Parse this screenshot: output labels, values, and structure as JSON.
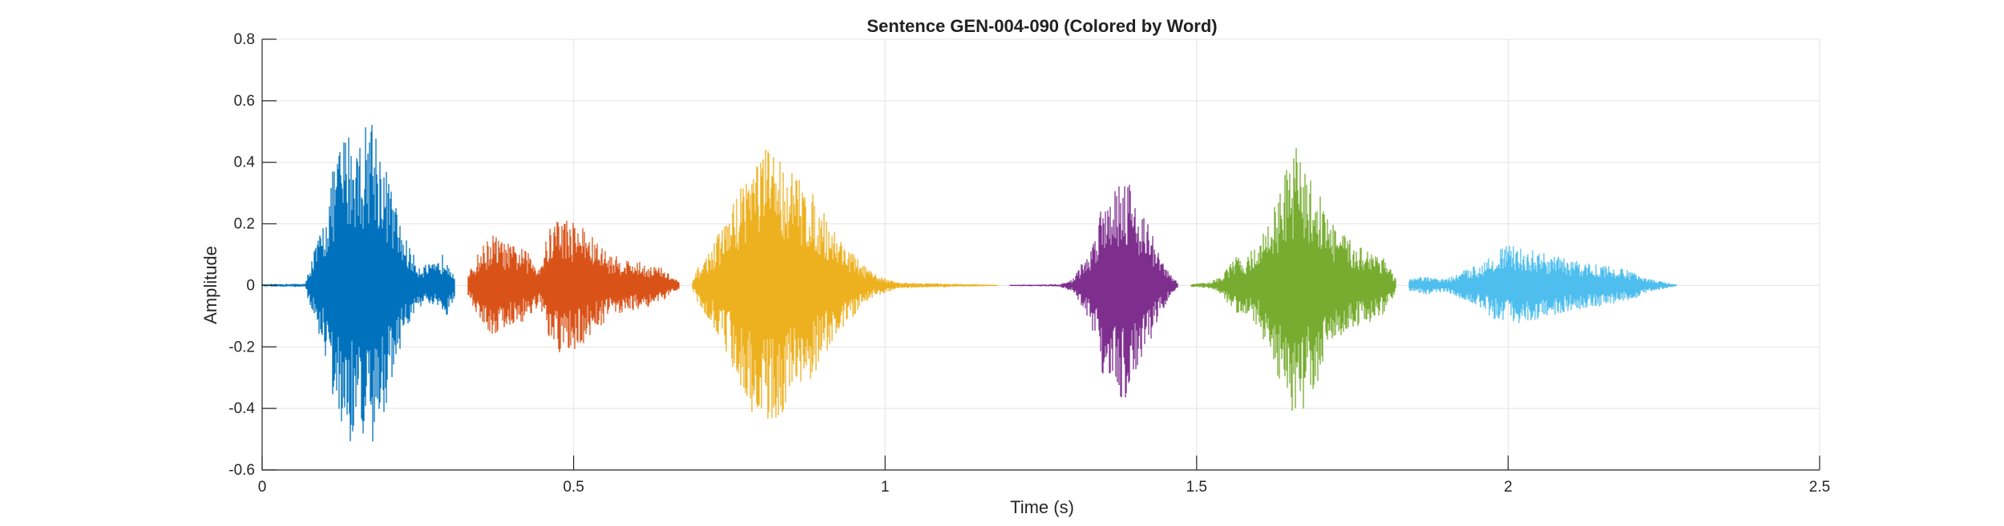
{
  "chart_data": {
    "type": "line",
    "title": "Sentence GEN-004-090 (Colored by Word)",
    "xlabel": "Time (s)",
    "ylabel": "Amplitude",
    "xlim": [
      0,
      2.5
    ],
    "ylim": [
      -0.6,
      0.8
    ],
    "x_ticks": [
      0,
      0.5,
      1,
      1.5,
      2,
      2.5
    ],
    "x_tick_labels": [
      "0",
      "0.5",
      "1",
      "1.5",
      "2",
      "2.5"
    ],
    "y_ticks": [
      -0.6,
      -0.4,
      -0.2,
      0,
      0.2,
      0.4,
      0.6,
      0.8
    ],
    "y_tick_labels": [
      "-0.6",
      "-0.4",
      "-0.2",
      "0",
      "0.2",
      "0.4",
      "0.6",
      "0.8"
    ],
    "grid": true,
    "legend": "none",
    "series": [
      {
        "color": "#0072BD",
        "t_start": 0.0,
        "t_end": 0.31,
        "envelope": [
          [
            0.0,
            0.004
          ],
          [
            0.07,
            0.006
          ],
          [
            0.075,
            0.06
          ],
          [
            0.1,
            0.22
          ],
          [
            0.12,
            0.45
          ],
          [
            0.14,
            0.52
          ],
          [
            0.16,
            0.48
          ],
          [
            0.175,
            0.6
          ],
          [
            0.19,
            0.46
          ],
          [
            0.21,
            0.3
          ],
          [
            0.225,
            0.18
          ],
          [
            0.25,
            0.07
          ],
          [
            0.28,
            0.07
          ],
          [
            0.295,
            0.12
          ],
          [
            0.31,
            0.03
          ]
        ]
      },
      {
        "color": "#D95319",
        "t_start": 0.33,
        "t_end": 0.67,
        "envelope": [
          [
            0.33,
            0.03
          ],
          [
            0.35,
            0.12
          ],
          [
            0.37,
            0.17
          ],
          [
            0.39,
            0.14
          ],
          [
            0.42,
            0.12
          ],
          [
            0.445,
            0.07
          ],
          [
            0.46,
            0.18
          ],
          [
            0.475,
            0.24
          ],
          [
            0.49,
            0.22
          ],
          [
            0.51,
            0.21
          ],
          [
            0.53,
            0.16
          ],
          [
            0.56,
            0.1
          ],
          [
            0.6,
            0.08
          ],
          [
            0.64,
            0.06
          ],
          [
            0.67,
            0.01
          ]
        ]
      },
      {
        "color": "#EDB120",
        "t_start": 0.69,
        "t_end": 1.18,
        "envelope": [
          [
            0.69,
            0.01
          ],
          [
            0.7,
            0.06
          ],
          [
            0.72,
            0.12
          ],
          [
            0.75,
            0.24
          ],
          [
            0.78,
            0.4
          ],
          [
            0.8,
            0.44
          ],
          [
            0.82,
            0.46
          ],
          [
            0.84,
            0.4
          ],
          [
            0.86,
            0.36
          ],
          [
            0.89,
            0.28
          ],
          [
            0.92,
            0.18
          ],
          [
            0.95,
            0.1
          ],
          [
            0.98,
            0.04
          ],
          [
            1.02,
            0.01
          ],
          [
            1.18,
            0.002
          ]
        ]
      },
      {
        "color": "#7E2F8E",
        "t_start": 1.2,
        "t_end": 1.47,
        "envelope": [
          [
            1.2,
            0.002
          ],
          [
            1.28,
            0.004
          ],
          [
            1.3,
            0.02
          ],
          [
            1.33,
            0.12
          ],
          [
            1.35,
            0.3
          ],
          [
            1.37,
            0.34
          ],
          [
            1.385,
            0.38
          ],
          [
            1.4,
            0.3
          ],
          [
            1.42,
            0.22
          ],
          [
            1.44,
            0.1
          ],
          [
            1.46,
            0.03
          ],
          [
            1.47,
            0.01
          ]
        ]
      },
      {
        "color": "#77AC30",
        "t_start": 1.49,
        "t_end": 1.82,
        "envelope": [
          [
            1.49,
            0.005
          ],
          [
            1.52,
            0.01
          ],
          [
            1.54,
            0.03
          ],
          [
            1.56,
            0.09
          ],
          [
            1.58,
            0.1
          ],
          [
            1.6,
            0.14
          ],
          [
            1.62,
            0.24
          ],
          [
            1.645,
            0.38
          ],
          [
            1.66,
            0.46
          ],
          [
            1.68,
            0.36
          ],
          [
            1.7,
            0.3
          ],
          [
            1.72,
            0.2
          ],
          [
            1.75,
            0.14
          ],
          [
            1.78,
            0.12
          ],
          [
            1.8,
            0.1
          ],
          [
            1.82,
            0.02
          ]
        ]
      },
      {
        "color": "#4DBEEE",
        "t_start": 1.84,
        "t_end": 2.27,
        "envelope": [
          [
            1.84,
            0.02
          ],
          [
            1.87,
            0.03
          ],
          [
            1.9,
            0.02
          ],
          [
            1.93,
            0.05
          ],
          [
            1.96,
            0.08
          ],
          [
            1.98,
            0.12
          ],
          [
            2.0,
            0.13
          ],
          [
            2.03,
            0.12
          ],
          [
            2.07,
            0.1
          ],
          [
            2.11,
            0.08
          ],
          [
            2.15,
            0.07
          ],
          [
            2.19,
            0.05
          ],
          [
            2.21,
            0.04
          ],
          [
            2.23,
            0.02
          ],
          [
            2.27,
            0.003
          ]
        ]
      }
    ]
  }
}
